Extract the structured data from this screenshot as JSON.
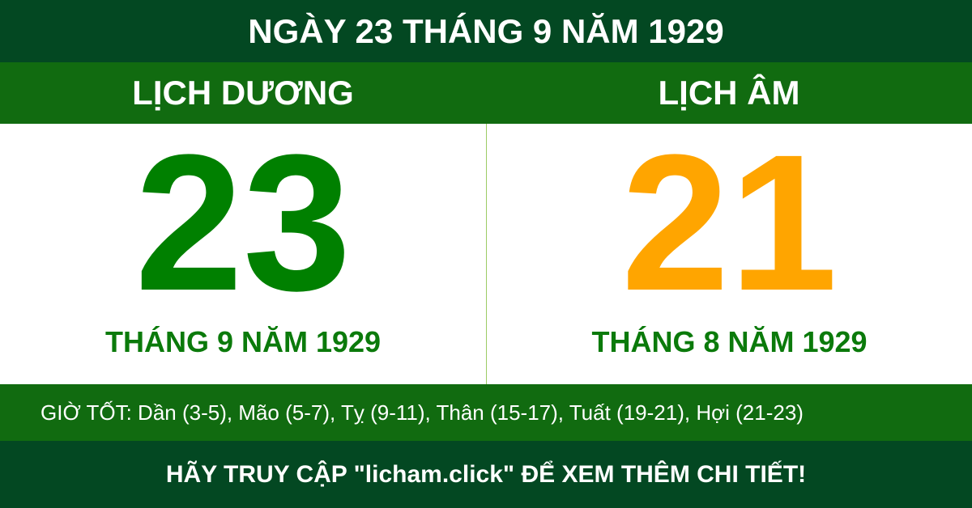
{
  "title": "NGÀY 23 THÁNG 9 NĂM 1929",
  "solar": {
    "label": "LỊCH DƯƠNG",
    "day": "23",
    "month_year": "THÁNG 9 NĂM 1929",
    "color": "#008000"
  },
  "lunar": {
    "label": "LỊCH ÂM",
    "day": "21",
    "month_year": "THÁNG 8 NĂM 1929",
    "color": "#ffa500"
  },
  "good_hours": "GIỜ TỐT: Dần (3-5), Mão (5-7), Tỵ (9-11), Thân (15-17), Tuất (19-21), Hợi (21-23)",
  "footer": "HÃY TRUY CẬP \"licham.click\" ĐỂ XEM THÊM CHI TIẾT!"
}
